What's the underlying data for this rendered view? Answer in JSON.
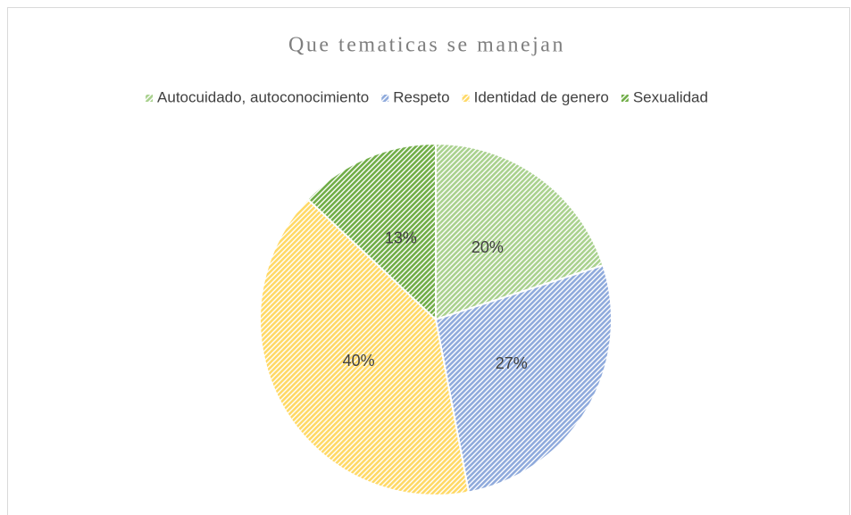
{
  "chart_data": {
    "type": "pie",
    "title": "Que tematicas se manejan",
    "categories": [
      "Autocuidado, autoconocimiento",
      "Respeto",
      "Identidad de genero",
      "Sexualidad"
    ],
    "values": [
      20,
      27,
      40,
      13
    ],
    "value_labels": [
      "20%",
      "27%",
      "40%",
      "13%"
    ],
    "colors": [
      "#a9d18e",
      "#8faadc",
      "#ffd966",
      "#70ad47"
    ],
    "legend": "top"
  }
}
